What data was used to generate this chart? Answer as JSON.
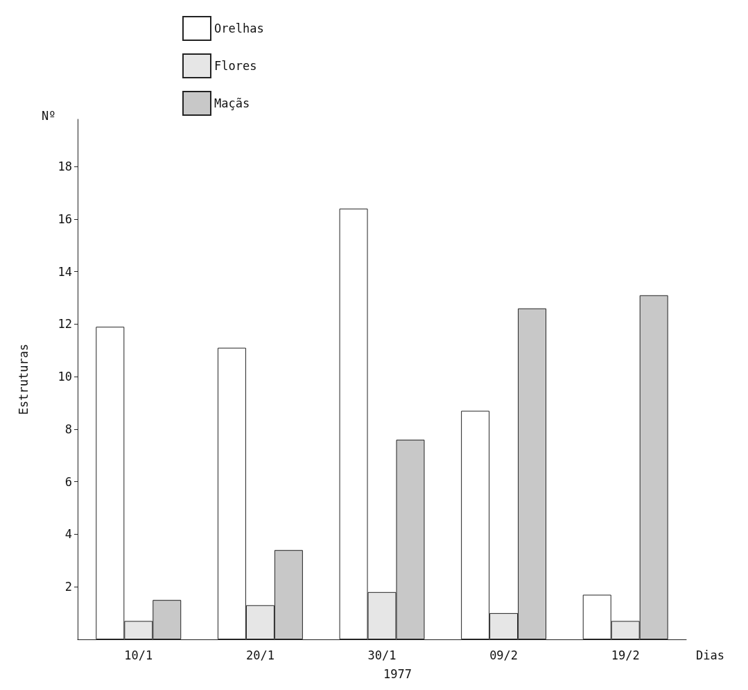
{
  "chart_data": {
    "type": "bar",
    "xlabel": "Dias",
    "ylabel": "Estruturas",
    "annotations": [
      "Nº",
      "1977"
    ],
    "categories": [
      "10/1",
      "20/1",
      "30/1",
      "09/2",
      "19/2"
    ],
    "series": [
      {
        "name": "Orelhas",
        "color": "#ffffff",
        "values": [
          11.9,
          11.1,
          16.4,
          8.7,
          1.7
        ]
      },
      {
        "name": "Flores",
        "color": "#e6e6e6",
        "values": [
          0.7,
          1.3,
          1.8,
          1.0,
          0.7
        ]
      },
      {
        "name": "Maçãs",
        "color": "#c8c8c8",
        "values": [
          1.5,
          3.4,
          7.6,
          12.6,
          13.1
        ]
      }
    ],
    "ylim": [
      0,
      19.8
    ],
    "yticks": [
      2,
      4,
      6,
      8,
      10,
      12,
      14,
      16,
      18
    ],
    "grid": false,
    "legend": "top"
  }
}
